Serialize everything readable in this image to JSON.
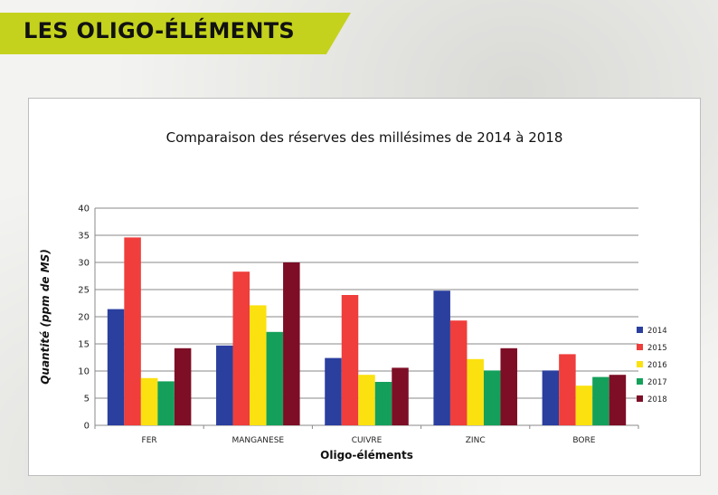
{
  "header": {
    "title": "LES OLIGO-ÉLÉMENTS",
    "accent": "#c4d21d"
  },
  "chart_data": {
    "type": "bar",
    "title": "Comparaison des réserves des millésimes de 2014 à 2018",
    "xlabel": "Oligo-éléments",
    "ylabel": "Quantité (ppm de MS)",
    "ylim": [
      0,
      40
    ],
    "yticks": [
      0,
      5,
      10,
      15,
      20,
      25,
      30,
      35,
      40
    ],
    "grid": true,
    "legend_position": "right",
    "categories": [
      "FER",
      "MANGANESE",
      "CUIVRE",
      "ZINC",
      "BORE"
    ],
    "series": [
      {
        "name": "2014",
        "color": "#2a3f9e",
        "values": [
          21.4,
          14.7,
          12.4,
          24.8,
          10.1
        ]
      },
      {
        "name": "2015",
        "color": "#ef3e3b",
        "values": [
          34.6,
          28.3,
          24.0,
          19.3,
          13.1
        ]
      },
      {
        "name": "2016",
        "color": "#fbe10f",
        "values": [
          8.7,
          22.1,
          9.3,
          12.2,
          7.3
        ]
      },
      {
        "name": "2017",
        "color": "#14a05a",
        "values": [
          8.1,
          17.2,
          8.0,
          10.1,
          8.9
        ]
      },
      {
        "name": "2018",
        "color": "#7d0e26",
        "values": [
          14.2,
          30.0,
          10.6,
          14.2,
          9.3
        ]
      }
    ]
  }
}
